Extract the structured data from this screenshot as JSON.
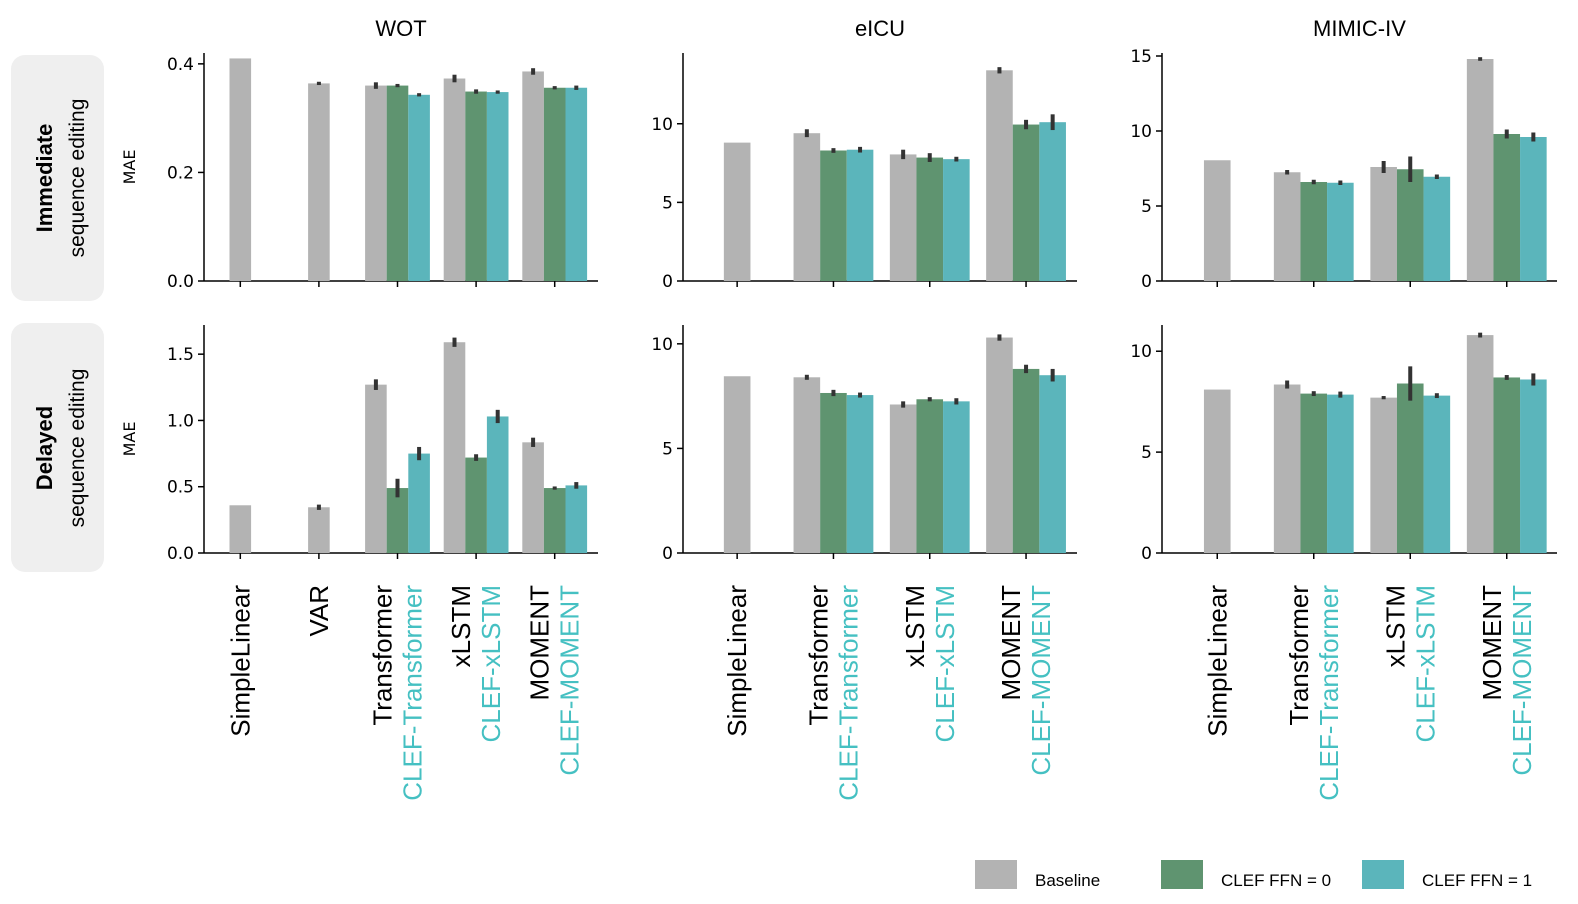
{
  "colors": {
    "baseline": "#b3b3b3",
    "ffn0": "#5f9470",
    "ffn1": "#5bb5bb",
    "clef_label": "#45c0c2",
    "errbar": "#333333",
    "row_label_bg": "#efefef"
  },
  "legend": [
    {
      "key": "baseline",
      "label": "Baseline"
    },
    {
      "key": "ffn0",
      "label": "CLEF FFN = 0"
    },
    {
      "key": "ffn1",
      "label": "CLEF FFN = 1"
    }
  ],
  "row_labels": [
    {
      "title": "Immediate",
      "subtitle": "sequence editing"
    },
    {
      "title": "Delayed",
      "subtitle": "sequence editing"
    }
  ],
  "chart_data": [
    {
      "type": "bar",
      "title": "WOT",
      "ylabel": "MAE",
      "ylim": [
        0,
        0.42
      ],
      "yticks": [
        {
          "v": 0,
          "label": "0.0"
        },
        {
          "v": 0.2,
          "label": "0.2"
        },
        {
          "v": 0.4,
          "label": "0.4"
        }
      ],
      "groups": [
        {
          "baseline": 0.41,
          "baseline_err": 0
        },
        {
          "baseline": 0.364,
          "baseline_err": 0.003
        },
        {
          "baseline": 0.36,
          "baseline_err": 0.006,
          "ffn0": 0.36,
          "ffn0_err": 0.003,
          "ffn1": 0.343,
          "ffn1_err": 0.003
        },
        {
          "baseline": 0.373,
          "baseline_err": 0.007,
          "ffn0": 0.349,
          "ffn0_err": 0.004,
          "ffn1": 0.348,
          "ffn1_err": 0.003
        },
        {
          "baseline": 0.386,
          "baseline_err": 0.006,
          "ffn0": 0.356,
          "ffn0_err": 0.003,
          "ffn1": 0.356,
          "ffn1_err": 0.004
        }
      ]
    },
    {
      "type": "bar",
      "title": "eICU",
      "ylabel": "",
      "ylim": [
        0,
        14.5
      ],
      "yticks": [
        {
          "v": 0,
          "label": "0"
        },
        {
          "v": 5,
          "label": "5"
        },
        {
          "v": 10,
          "label": "10"
        }
      ],
      "groups": [
        {
          "baseline": 8.8,
          "baseline_err": 0
        },
        {
          "baseline": 9.4,
          "baseline_err": 0.25,
          "ffn0": 8.3,
          "ffn0_err": 0.15,
          "ffn1": 8.35,
          "ffn1_err": 0.18
        },
        {
          "baseline": 8.05,
          "baseline_err": 0.3,
          "ffn0": 7.85,
          "ffn0_err": 0.28,
          "ffn1": 7.75,
          "ffn1_err": 0.15
        },
        {
          "baseline": 13.4,
          "baseline_err": 0.2,
          "ffn0": 9.95,
          "ffn0_err": 0.3,
          "ffn1": 10.1,
          "ffn1_err": 0.5
        }
      ]
    },
    {
      "type": "bar",
      "title": "MIMIC-IV",
      "ylabel": "",
      "ylim": [
        0,
        15.2
      ],
      "yticks": [
        {
          "v": 0,
          "label": "0"
        },
        {
          "v": 5,
          "label": "5"
        },
        {
          "v": 10,
          "label": "10"
        },
        {
          "v": 15,
          "label": "15"
        }
      ],
      "groups": [
        {
          "baseline": 8.05,
          "baseline_err": 0
        },
        {
          "baseline": 7.25,
          "baseline_err": 0.15,
          "ffn0": 6.6,
          "ffn0_err": 0.15,
          "ffn1": 6.55,
          "ffn1_err": 0.15
        },
        {
          "baseline": 7.6,
          "baseline_err": 0.4,
          "ffn0": 7.45,
          "ffn0_err": 0.85,
          "ffn1": 6.95,
          "ffn1_err": 0.15
        },
        {
          "baseline": 14.8,
          "baseline_err": 0.12,
          "ffn0": 9.8,
          "ffn0_err": 0.3,
          "ffn1": 9.6,
          "ffn1_err": 0.3
        }
      ]
    },
    {
      "type": "bar",
      "title": "",
      "ylabel": "MAE",
      "ylim": [
        0,
        1.72
      ],
      "yticks": [
        {
          "v": 0,
          "label": "0.0"
        },
        {
          "v": 0.5,
          "label": "0.5"
        },
        {
          "v": 1.0,
          "label": "1.0"
        },
        {
          "v": 1.5,
          "label": "1.5"
        }
      ],
      "groups": [
        {
          "baseline": 0.36,
          "baseline_err": 0
        },
        {
          "baseline": 0.345,
          "baseline_err": 0.02
        },
        {
          "baseline": 1.27,
          "baseline_err": 0.04,
          "ffn0": 0.49,
          "ffn0_err": 0.07,
          "ffn1": 0.75,
          "ffn1_err": 0.05
        },
        {
          "baseline": 1.59,
          "baseline_err": 0.035,
          "ffn0": 0.72,
          "ffn0_err": 0.025,
          "ffn1": 1.03,
          "ffn1_err": 0.05
        },
        {
          "baseline": 0.835,
          "baseline_err": 0.035,
          "ffn0": 0.49,
          "ffn0_err": 0.012,
          "ffn1": 0.51,
          "ffn1_err": 0.025
        }
      ]
    },
    {
      "type": "bar",
      "title": "",
      "ylabel": "",
      "ylim": [
        0,
        10.9
      ],
      "yticks": [
        {
          "v": 0,
          "label": "0"
        },
        {
          "v": 5,
          "label": "5"
        },
        {
          "v": 10,
          "label": "10"
        }
      ],
      "groups": [
        {
          "baseline": 8.45,
          "baseline_err": 0
        },
        {
          "baseline": 8.4,
          "baseline_err": 0.12,
          "ffn0": 7.65,
          "ffn0_err": 0.15,
          "ffn1": 7.55,
          "ffn1_err": 0.12
        },
        {
          "baseline": 7.1,
          "baseline_err": 0.15,
          "ffn0": 7.35,
          "ffn0_err": 0.1,
          "ffn1": 7.25,
          "ffn1_err": 0.15
        },
        {
          "baseline": 10.3,
          "baseline_err": 0.15,
          "ffn0": 8.8,
          "ffn0_err": 0.2,
          "ffn1": 8.5,
          "ffn1_err": 0.3
        }
      ]
    },
    {
      "type": "bar",
      "title": "",
      "ylabel": "",
      "ylim": [
        0,
        11.3
      ],
      "yticks": [
        {
          "v": 0,
          "label": "0"
        },
        {
          "v": 5,
          "label": "5"
        },
        {
          "v": 10,
          "label": "10"
        }
      ],
      "groups": [
        {
          "baseline": 8.1,
          "baseline_err": 0
        },
        {
          "baseline": 8.35,
          "baseline_err": 0.2,
          "ffn0": 7.9,
          "ffn0_err": 0.12,
          "ffn1": 7.85,
          "ffn1_err": 0.15
        },
        {
          "baseline": 7.7,
          "baseline_err": 0.08,
          "ffn0": 8.4,
          "ffn0_err": 0.85,
          "ffn1": 7.8,
          "ffn1_err": 0.12
        },
        {
          "baseline": 10.8,
          "baseline_err": 0.12,
          "ffn0": 8.7,
          "ffn0_err": 0.12,
          "ffn1": 8.6,
          "ffn1_err": 0.3
        }
      ]
    }
  ],
  "x_labels": [
    [
      {
        "base": "SimpleLinear"
      },
      {
        "base": "VAR"
      },
      {
        "base": "Transformer",
        "clef": "CLEF-Transformer"
      },
      {
        "base": "xLSTM",
        "clef": "CLEF-xLSTM"
      },
      {
        "base": "MOMENT",
        "clef": "CLEF-MOMENT"
      }
    ],
    [
      {
        "base": "SimpleLinear"
      },
      {
        "base": "Transformer",
        "clef": "CLEF-Transformer"
      },
      {
        "base": "xLSTM",
        "clef": "CLEF-xLSTM"
      },
      {
        "base": "MOMENT",
        "clef": "CLEF-MOMENT"
      }
    ],
    [
      {
        "base": "SimpleLinear"
      },
      {
        "base": "Transformer",
        "clef": "CLEF-Transformer"
      },
      {
        "base": "xLSTM",
        "clef": "CLEF-xLSTM"
      },
      {
        "base": "MOMENT",
        "clef": "CLEF-MOMENT"
      }
    ]
  ]
}
